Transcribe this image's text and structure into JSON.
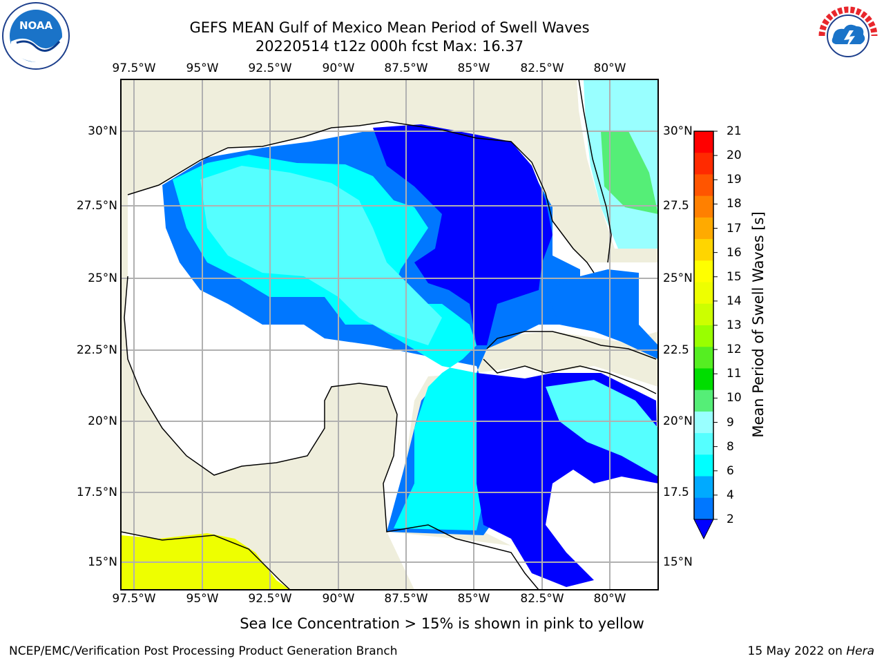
{
  "title": {
    "line1": "GEFS MEAN Gulf of Mexico Mean Period of Swell Waves",
    "line2": "20220514 t12z 000h fcst   Max: 16.37"
  },
  "map": {
    "lon_ticks": [
      "97.5°W",
      "95°W",
      "92.5°W",
      "90°W",
      "87.5°W",
      "85°W",
      "82.5°W",
      "80°W"
    ],
    "lat_ticks_left": [
      "30°N",
      "27.5°N",
      "25°N",
      "22.5°N",
      "20°N",
      "17.5°N",
      "15°N"
    ],
    "lat_ticks_right": [
      "30°N",
      "27.5",
      "25°N",
      "22.5",
      "20°N",
      "17.5",
      "15°N"
    ],
    "colors": {
      "land": "#efeedc",
      "ocean_empty": "#ffffff",
      "grid": "#b0b0b0",
      "coast": "#000000"
    }
  },
  "colorbar": {
    "title": "Mean Period of Swell Waves [s]",
    "labels": [
      "21",
      "20",
      "19",
      "18",
      "17",
      "16",
      "15",
      "14",
      "13",
      "12",
      "11",
      "10",
      "9",
      "8",
      "6",
      "4",
      "2"
    ],
    "colors": [
      "#ff0000",
      "#ff2a00",
      "#ff5500",
      "#ff8000",
      "#ffaa00",
      "#ffd500",
      "#ffff00",
      "#eeff00",
      "#ccff00",
      "#99ff00",
      "#55ee22",
      "#00dd00",
      "#55ee77",
      "#99ffff",
      "#55ffff",
      "#00ffff",
      "#00aaff",
      "#0077ff",
      "#0000ff"
    ]
  },
  "note": "Sea Ice Concentration > 15% is shown in pink to yellow",
  "footer": {
    "left": "NCEP/EMC/Verification Post Processing Product Generation Branch",
    "date": "15 May 2022 on ",
    "machine": "Hera"
  },
  "logos": {
    "left": "NOAA",
    "right": "NATIONAL WEATHER SERVICE"
  }
}
